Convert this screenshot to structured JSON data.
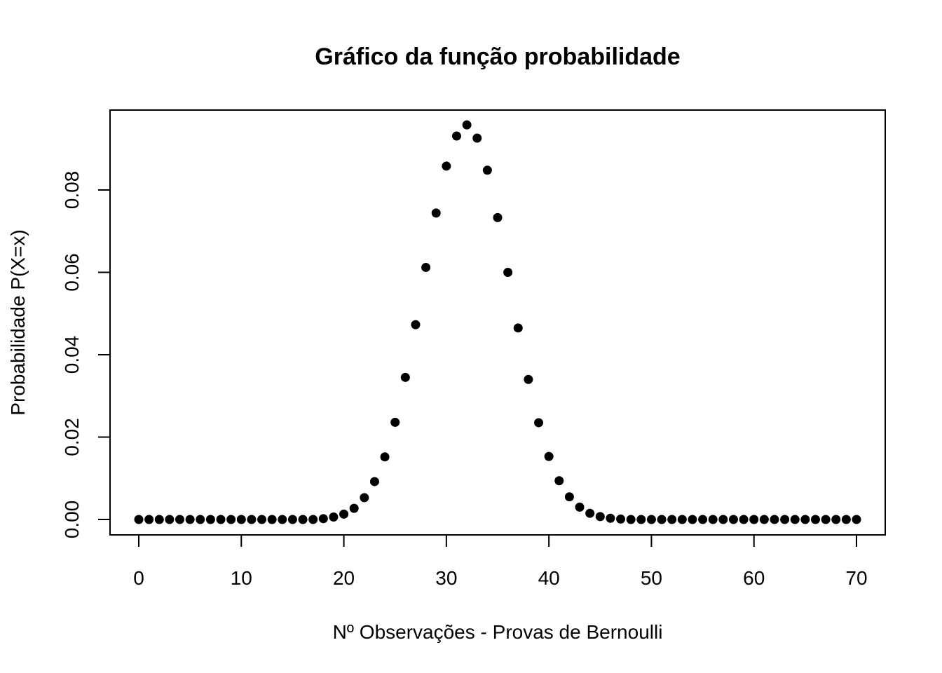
{
  "chart_data": {
    "type": "scatter",
    "title": "Gráfico da função probabilidade",
    "xlabel": "Nº Observações - Provas de Bernoulli",
    "ylabel": "Probabilidade P(X=x)",
    "xlim": [
      0,
      70
    ],
    "ylim": [
      0,
      0.096
    ],
    "x_ticks": [
      "0",
      "10",
      "20",
      "30",
      "40",
      "50",
      "60",
      "70"
    ],
    "y_ticks": [
      "0.00",
      "0.02",
      "0.04",
      "0.06",
      "0.08"
    ],
    "grid": false,
    "legend": "none",
    "point_color": "#000000",
    "x": [
      0,
      1,
      2,
      3,
      4,
      5,
      6,
      7,
      8,
      9,
      10,
      11,
      12,
      13,
      14,
      15,
      16,
      17,
      18,
      19,
      20,
      21,
      22,
      23,
      24,
      25,
      26,
      27,
      28,
      29,
      30,
      31,
      32,
      33,
      34,
      35,
      36,
      37,
      38,
      39,
      40,
      41,
      42,
      43,
      44,
      45,
      46,
      47,
      48,
      49,
      50,
      51,
      52,
      53,
      54,
      55,
      56,
      57,
      58,
      59,
      60,
      61,
      62,
      63,
      64,
      65,
      66,
      67,
      68,
      69,
      70
    ],
    "y": [
      0,
      0,
      0,
      0,
      0,
      0,
      0,
      0,
      0,
      0,
      0,
      0,
      0,
      0,
      0,
      0,
      0,
      0,
      0.0002,
      0.0006,
      0.0013,
      0.0027,
      0.0053,
      0.0092,
      0.0152,
      0.0236,
      0.0345,
      0.0473,
      0.0612,
      0.0744,
      0.0858,
      0.0931,
      0.0958,
      0.0926,
      0.0848,
      0.0733,
      0.06,
      0.0465,
      0.034,
      0.0235,
      0.0153,
      0.0094,
      0.0055,
      0.003,
      0.0015,
      0.0007,
      0.0003,
      0.0001,
      0,
      0,
      0,
      0,
      0,
      0,
      0,
      0,
      0,
      0,
      0,
      0,
      0,
      0,
      0,
      0,
      0,
      0,
      0,
      0,
      0,
      0,
      0
    ]
  }
}
